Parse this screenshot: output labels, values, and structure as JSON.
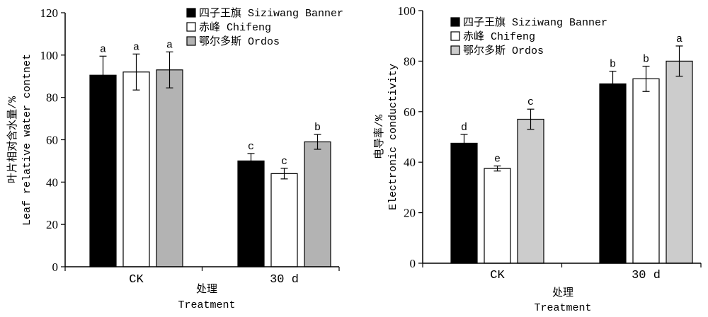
{
  "chart_data": [
    {
      "type": "bar",
      "title": "",
      "categories": [
        "CK",
        "30 d"
      ],
      "xlabel": [
        "处理",
        "Treatment"
      ],
      "ylabel": [
        "叶片相对含水量/%",
        "Leaf relative water contnet"
      ],
      "ylim": [
        0,
        120
      ],
      "yticks": [
        0,
        20,
        40,
        60,
        80,
        100,
        120
      ],
      "grid": false,
      "legend_position": "top-right",
      "series": [
        {
          "name": "四子王旗 Siziwang Banner",
          "color": "#000000",
          "values": [
            90.5,
            50
          ],
          "errors": [
            9,
            3.5
          ],
          "letters": [
            "a",
            "c"
          ]
        },
        {
          "name": "赤峰 Chifeng",
          "color": "#ffffff",
          "values": [
            92,
            44
          ],
          "errors": [
            8.5,
            2.5
          ],
          "letters": [
            "a",
            "c"
          ]
        },
        {
          "name": "鄂尔多斯 Ordos",
          "color": "#b3b3b3",
          "values": [
            93,
            59
          ],
          "errors": [
            8.5,
            3.5
          ],
          "letters": [
            "a",
            "b"
          ]
        }
      ]
    },
    {
      "type": "bar",
      "title": "",
      "categories": [
        "CK",
        "30 d"
      ],
      "xlabel": [
        "处理",
        "Treatment"
      ],
      "ylabel": [
        "电导率/%",
        "Electronic conductivity"
      ],
      "ylim": [
        0,
        100
      ],
      "yticks": [
        0,
        20,
        40,
        60,
        80,
        100
      ],
      "grid": false,
      "legend_position": "top-left",
      "series": [
        {
          "name": "四子王旗 Siziwang Banner",
          "color": "#000000",
          "values": [
            47.5,
            71
          ],
          "errors": [
            3.5,
            5
          ],
          "letters": [
            "d",
            "b"
          ]
        },
        {
          "name": "赤峰 Chifeng",
          "color": "#ffffff",
          "values": [
            37.5,
            73
          ],
          "errors": [
            1,
            5
          ],
          "letters": [
            "e",
            "b"
          ]
        },
        {
          "name": "鄂尔多斯 Ordos",
          "color": "#cccccc",
          "values": [
            57,
            80
          ],
          "errors": [
            4,
            6
          ],
          "letters": [
            "c",
            "a"
          ]
        }
      ]
    }
  ]
}
